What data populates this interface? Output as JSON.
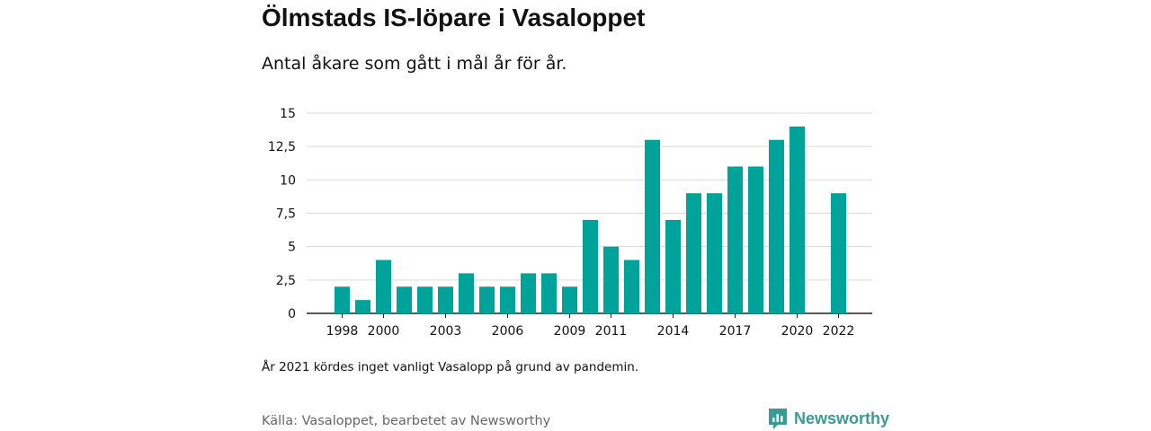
{
  "title": "Ölmstads IS-löpare i Vasaloppet",
  "subtitle": "Antal åkare som gått i mål år för år.",
  "note": "År 2021 kördes inget vanligt Vasalopp på grund av pandemin.",
  "source": "Källa: Vasaloppet, bearbetet av Newsworthy",
  "brand": {
    "name": "Newsworthy",
    "icon": "newsworthy-logo-icon",
    "color": "#3a9a94"
  },
  "chart_data": {
    "type": "bar",
    "categories": [
      "1998",
      "1999",
      "2000",
      "2001",
      "2002",
      "2003",
      "2004",
      "2005",
      "2006",
      "2007",
      "2008",
      "2009",
      "2010",
      "2011",
      "2012",
      "2013",
      "2014",
      "2015",
      "2016",
      "2017",
      "2018",
      "2019",
      "2020",
      "2021",
      "2022"
    ],
    "values": [
      2,
      1,
      4,
      2,
      2,
      2,
      3,
      2,
      2,
      3,
      3,
      2,
      7,
      5,
      4,
      13,
      7,
      9,
      9,
      11,
      11,
      13,
      14,
      null,
      9
    ],
    "x_tick_labels": [
      "1998",
      "2000",
      "2003",
      "2006",
      "2009",
      "2011",
      "2014",
      "2017",
      "2020",
      "2022"
    ],
    "y_ticks": [
      0,
      2.5,
      5,
      7.5,
      10,
      12.5,
      15
    ],
    "y_tick_labels": [
      "0",
      "2,5",
      "5",
      "7,5",
      "10",
      "12,5",
      "15"
    ],
    "ylim": [
      0,
      15
    ],
    "xlabel": "",
    "ylabel": "",
    "grid": true,
    "bar_color": "#00a39a"
  }
}
